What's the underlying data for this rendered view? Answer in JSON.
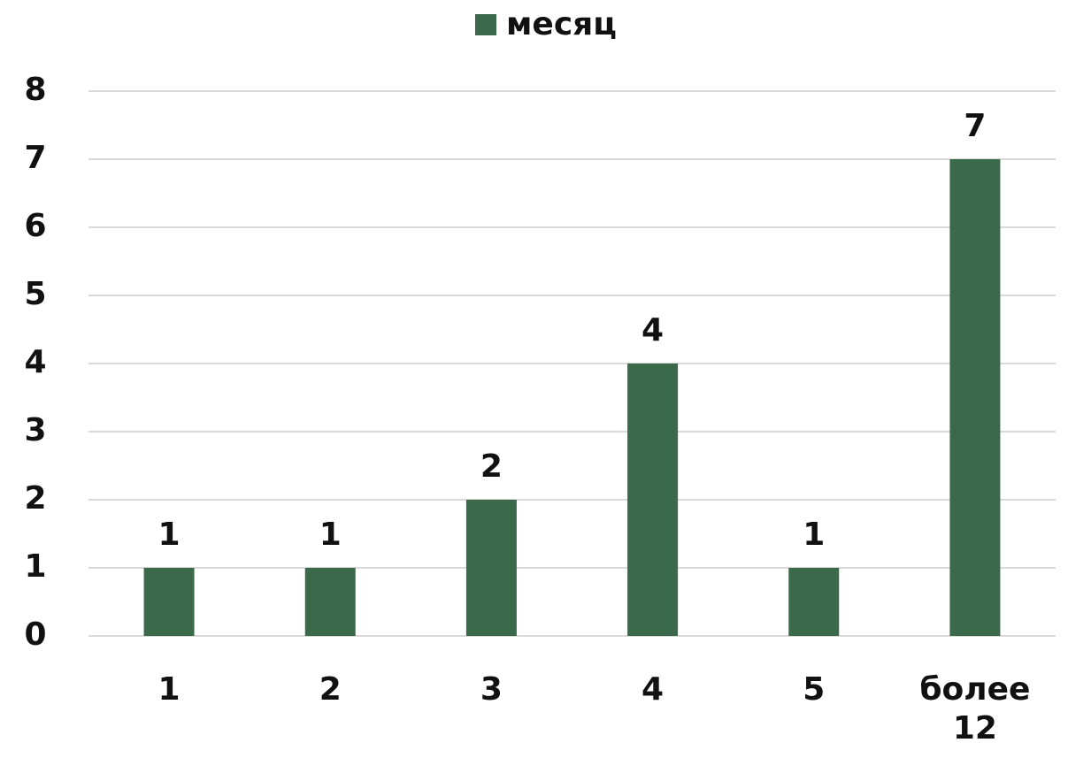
{
  "chart_data": {
    "type": "bar",
    "legend": "месяц",
    "categories": [
      "1",
      "2",
      "3",
      "4",
      "5",
      "более 12"
    ],
    "values": [
      1,
      1,
      2,
      4,
      1,
      7
    ],
    "color": "#3b6a4b",
    "ylim": [
      0,
      8
    ],
    "yticks": [
      0,
      1,
      2,
      3,
      4,
      5,
      6,
      7,
      8
    ],
    "grid": true,
    "data_labels": true
  }
}
